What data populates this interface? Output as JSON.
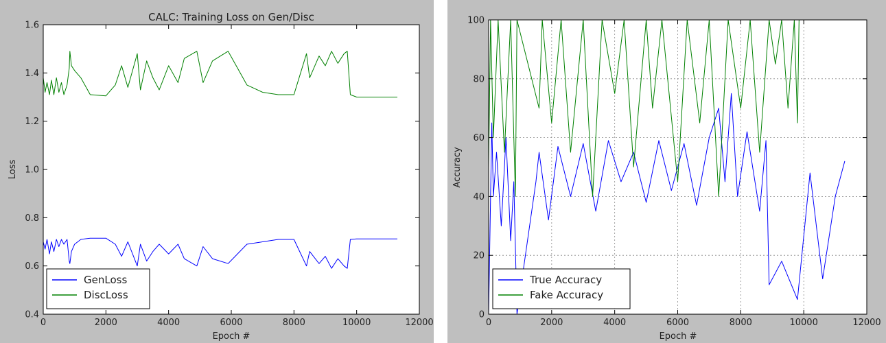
{
  "chart_data": [
    {
      "type": "line",
      "title": "CALC: Training Loss on Gen/Disc",
      "xlabel": "Epoch #",
      "ylabel": "Loss",
      "xlim": [
        0,
        12000
      ],
      "ylim": [
        0.4,
        1.6
      ],
      "x_ticks": [
        "0",
        "2000",
        "4000",
        "6000",
        "8000",
        "10000",
        "12000"
      ],
      "y_ticks": [
        "0.4",
        "0.6",
        "0.8",
        "1.0",
        "1.2",
        "1.4",
        "1.6"
      ],
      "grid": false,
      "legend": "lower-left",
      "series": [
        {
          "name": "GenLoss",
          "color": "#0000ff",
          "x": [
            0,
            60,
            120,
            200,
            260,
            340,
            420,
            500,
            580,
            660,
            760,
            830,
            850,
            900,
            1000,
            1200,
            1500,
            2000,
            2300,
            2500,
            2700,
            3000,
            3100,
            3300,
            3500,
            3700,
            4000,
            4300,
            4500,
            4900,
            5100,
            5400,
            5900,
            6200,
            6500,
            7000,
            7500,
            8000,
            8400,
            8500,
            8800,
            9000,
            9200,
            9400,
            9600,
            9700,
            9800,
            10000,
            11300
          ],
          "y": [
            0.7,
            0.67,
            0.71,
            0.65,
            0.7,
            0.66,
            0.71,
            0.68,
            0.71,
            0.69,
            0.71,
            0.62,
            0.61,
            0.66,
            0.69,
            0.71,
            0.715,
            0.715,
            0.69,
            0.64,
            0.7,
            0.6,
            0.69,
            0.62,
            0.66,
            0.69,
            0.65,
            0.69,
            0.63,
            0.6,
            0.68,
            0.63,
            0.61,
            0.65,
            0.69,
            0.7,
            0.71,
            0.71,
            0.6,
            0.66,
            0.61,
            0.64,
            0.59,
            0.63,
            0.6,
            0.59,
            0.71,
            0.712,
            0.712
          ]
        },
        {
          "name": "DiscLoss",
          "color": "#008000",
          "x": [
            0,
            60,
            120,
            200,
            260,
            340,
            420,
            500,
            580,
            660,
            760,
            830,
            850,
            900,
            1000,
            1200,
            1500,
            2000,
            2300,
            2500,
            2700,
            3000,
            3100,
            3300,
            3500,
            3700,
            4000,
            4300,
            4500,
            4900,
            5100,
            5400,
            5900,
            6200,
            6500,
            7000,
            7500,
            8000,
            8400,
            8500,
            8800,
            9000,
            9200,
            9400,
            9600,
            9700,
            9800,
            10000,
            11300
          ],
          "y": [
            1.38,
            1.32,
            1.36,
            1.31,
            1.37,
            1.31,
            1.38,
            1.32,
            1.36,
            1.31,
            1.35,
            1.42,
            1.49,
            1.43,
            1.41,
            1.38,
            1.31,
            1.305,
            1.35,
            1.43,
            1.34,
            1.48,
            1.33,
            1.45,
            1.38,
            1.33,
            1.43,
            1.36,
            1.46,
            1.49,
            1.36,
            1.45,
            1.49,
            1.42,
            1.35,
            1.32,
            1.31,
            1.31,
            1.48,
            1.38,
            1.47,
            1.43,
            1.49,
            1.44,
            1.48,
            1.49,
            1.31,
            1.3,
            1.3
          ]
        }
      ]
    },
    {
      "type": "line",
      "title": "",
      "xlabel": "Epoch #",
      "ylabel": "Accuracy",
      "xlim": [
        0,
        12000
      ],
      "ylim": [
        0,
        100
      ],
      "x_ticks": [
        "0",
        "2000",
        "4000",
        "6000",
        "8000",
        "10000",
        "12000"
      ],
      "y_ticks": [
        "0",
        "20",
        "40",
        "60",
        "80",
        "100"
      ],
      "grid": true,
      "legend": "lower-left",
      "series": [
        {
          "name": "True Accuracy",
          "color": "#0000ff",
          "x": [
            0,
            100,
            150,
            250,
            400,
            550,
            700,
            800,
            900,
            1500,
            1600,
            1900,
            2200,
            2600,
            3000,
            3400,
            3800,
            4200,
            4600,
            5000,
            5400,
            5800,
            6200,
            6600,
            7000,
            7300,
            7500,
            7700,
            7900,
            8200,
            8600,
            8800,
            8900,
            9300,
            9800,
            10200,
            10600,
            11000,
            11300
          ],
          "y": [
            0,
            65,
            40,
            55,
            30,
            60,
            25,
            45,
            0,
            45,
            55,
            32,
            57,
            40,
            58,
            35,
            59,
            45,
            55,
            38,
            59,
            42,
            58,
            37,
            60,
            70,
            45,
            75,
            40,
            62,
            35,
            59,
            10,
            18,
            5,
            48,
            12,
            40,
            52
          ]
        },
        {
          "name": "Fake Accuracy",
          "color": "#008000",
          "x": [
            0,
            60,
            150,
            300,
            500,
            700,
            850,
            900,
            1600,
            1700,
            2000,
            2300,
            2600,
            3000,
            3300,
            3600,
            4000,
            4300,
            4600,
            5000,
            5200,
            5500,
            6000,
            6300,
            6700,
            7000,
            7300,
            7600,
            8000,
            8300,
            8600,
            8900,
            9100,
            9300,
            9500,
            9700,
            9800,
            9850
          ],
          "y": [
            50,
            100,
            60,
            100,
            55,
            100,
            40,
            100,
            70,
            100,
            65,
            100,
            55,
            100,
            40,
            100,
            75,
            100,
            50,
            100,
            70,
            100,
            45,
            100,
            65,
            100,
            40,
            100,
            70,
            100,
            55,
            100,
            85,
            100,
            70,
            100,
            65,
            100
          ]
        }
      ]
    }
  ]
}
